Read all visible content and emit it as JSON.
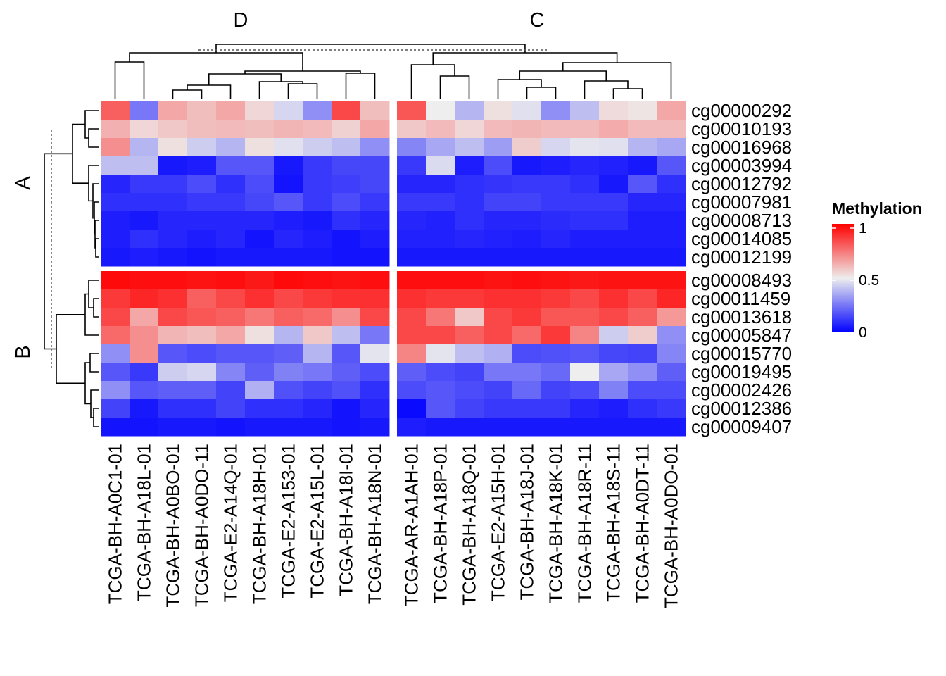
{
  "chart_data": {
    "type": "heatmap",
    "title": "",
    "row_groups": [
      {
        "name": "A",
        "rows": [
          "cg00000292",
          "cg00010193",
          "cg00016968",
          "cg00003994",
          "cg00012792",
          "cg00007981",
          "cg00008713",
          "cg00014085",
          "cg00012199"
        ]
      },
      {
        "name": "B",
        "rows": [
          "cg00008493",
          "cg00011459",
          "cg00013618",
          "cg00005847",
          "cg00015770",
          "cg00019495",
          "cg00002426",
          "cg00012386",
          "cg00009407"
        ]
      }
    ],
    "column_groups": [
      {
        "name": "D",
        "columns": [
          "TCGA-BH-A0C1-01",
          "TCGA-BH-A18L-01",
          "TCGA-BH-A0BO-01",
          "TCGA-BH-A0DO-11",
          "TCGA-E2-A14Q-01",
          "TCGA-BH-A18H-01",
          "TCGA-E2-A153-01",
          "TCGA-E2-A15L-01",
          "TCGA-BH-A18I-01",
          "TCGA-BH-A18N-01"
        ]
      },
      {
        "name": "C",
        "columns": [
          "TCGA-AR-A1AH-01",
          "TCGA-BH-A18P-01",
          "TCGA-BH-A18Q-01",
          "TCGA-E2-A15H-01",
          "TCGA-BH-A18J-01",
          "TCGA-BH-A18K-01",
          "TCGA-BH-A18R-11",
          "TCGA-BH-A18S-11",
          "TCGA-BH-A0DT-11",
          "TCGA-BH-A0DO-01"
        ]
      }
    ],
    "values": [
      [
        0.8,
        0.25,
        0.65,
        0.6,
        0.65,
        0.55,
        0.45,
        0.3,
        0.85,
        0.6,
        0.82,
        0.5,
        0.38,
        0.53,
        0.47,
        0.3,
        0.4,
        0.54,
        0.52,
        0.65
      ],
      [
        0.63,
        0.55,
        0.58,
        0.6,
        0.61,
        0.6,
        0.62,
        0.61,
        0.56,
        0.65,
        0.58,
        0.61,
        0.55,
        0.61,
        0.62,
        0.61,
        0.61,
        0.64,
        0.61,
        0.61
      ],
      [
        0.7,
        0.38,
        0.53,
        0.43,
        0.38,
        0.53,
        0.47,
        0.43,
        0.4,
        0.3,
        0.28,
        0.35,
        0.4,
        0.33,
        0.57,
        0.45,
        0.48,
        0.47,
        0.38,
        0.35
      ],
      [
        0.4,
        0.4,
        0.05,
        0.06,
        0.18,
        0.18,
        0.05,
        0.12,
        0.15,
        0.15,
        0.12,
        0.46,
        0.06,
        0.16,
        0.05,
        0.06,
        0.08,
        0.07,
        0.05,
        0.18
      ],
      [
        0.08,
        0.12,
        0.12,
        0.16,
        0.1,
        0.16,
        0.04,
        0.12,
        0.13,
        0.15,
        0.08,
        0.08,
        0.1,
        0.11,
        0.12,
        0.12,
        0.1,
        0.05,
        0.18,
        0.1
      ],
      [
        0.1,
        0.1,
        0.1,
        0.12,
        0.12,
        0.15,
        0.18,
        0.12,
        0.16,
        0.12,
        0.12,
        0.12,
        0.1,
        0.14,
        0.14,
        0.12,
        0.12,
        0.12,
        0.08,
        0.08
      ],
      [
        0.06,
        0.05,
        0.08,
        0.08,
        0.08,
        0.08,
        0.06,
        0.05,
        0.1,
        0.08,
        0.08,
        0.07,
        0.1,
        0.08,
        0.08,
        0.09,
        0.1,
        0.1,
        0.06,
        0.06
      ],
      [
        0.06,
        0.1,
        0.08,
        0.06,
        0.08,
        0.04,
        0.08,
        0.06,
        0.04,
        0.06,
        0.07,
        0.07,
        0.08,
        0.07,
        0.06,
        0.08,
        0.06,
        0.06,
        0.06,
        0.06
      ],
      [
        0.05,
        0.06,
        0.05,
        0.04,
        0.05,
        0.05,
        0.05,
        0.05,
        0.04,
        0.04,
        0.05,
        0.05,
        0.05,
        0.05,
        0.05,
        0.05,
        0.05,
        0.05,
        0.05,
        0.05
      ],
      [
        0.98,
        0.97,
        0.97,
        0.96,
        0.97,
        0.95,
        0.98,
        0.97,
        0.96,
        0.97,
        0.97,
        0.97,
        0.97,
        0.96,
        0.97,
        0.96,
        0.95,
        0.96,
        0.96,
        0.96
      ],
      [
        0.88,
        0.92,
        0.9,
        0.8,
        0.85,
        0.9,
        0.85,
        0.88,
        0.9,
        0.9,
        0.9,
        0.88,
        0.88,
        0.9,
        0.9,
        0.88,
        0.85,
        0.9,
        0.85,
        0.92
      ],
      [
        0.85,
        0.65,
        0.85,
        0.82,
        0.8,
        0.75,
        0.8,
        0.78,
        0.7,
        0.85,
        0.85,
        0.75,
        0.58,
        0.85,
        0.88,
        0.82,
        0.82,
        0.85,
        0.8,
        0.68
      ],
      [
        0.78,
        0.7,
        0.62,
        0.6,
        0.65,
        0.53,
        0.38,
        0.58,
        0.4,
        0.25,
        0.85,
        0.85,
        0.8,
        0.85,
        0.78,
        0.88,
        0.72,
        0.43,
        0.57,
        0.3
      ],
      [
        0.3,
        0.7,
        0.18,
        0.16,
        0.18,
        0.18,
        0.2,
        0.38,
        0.18,
        0.48,
        0.72,
        0.48,
        0.4,
        0.37,
        0.16,
        0.17,
        0.18,
        0.15,
        0.14,
        0.28
      ],
      [
        0.18,
        0.12,
        0.43,
        0.45,
        0.28,
        0.2,
        0.27,
        0.25,
        0.2,
        0.16,
        0.2,
        0.16,
        0.14,
        0.25,
        0.25,
        0.22,
        0.5,
        0.35,
        0.3,
        0.2
      ],
      [
        0.3,
        0.18,
        0.2,
        0.2,
        0.14,
        0.37,
        0.17,
        0.14,
        0.17,
        0.1,
        0.16,
        0.18,
        0.16,
        0.14,
        0.22,
        0.14,
        0.16,
        0.27,
        0.16,
        0.16
      ],
      [
        0.14,
        0.05,
        0.1,
        0.1,
        0.14,
        0.1,
        0.1,
        0.08,
        0.04,
        0.08,
        0.02,
        0.18,
        0.14,
        0.12,
        0.12,
        0.12,
        0.08,
        0.06,
        0.1,
        0.12
      ],
      [
        0.04,
        0.04,
        0.05,
        0.05,
        0.04,
        0.05,
        0.05,
        0.05,
        0.04,
        0.05,
        0.06,
        0.05,
        0.05,
        0.05,
        0.05,
        0.05,
        0.05,
        0.05,
        0.05,
        0.05
      ]
    ],
    "color_scale": {
      "low": "#0000ff",
      "mid": "#eeeeee",
      "high": "#ff0000",
      "domain": [
        0,
        0.5,
        1
      ]
    },
    "legend": {
      "title": "Methylation",
      "ticks": [
        "1",
        "0.5",
        "0"
      ],
      "placement": "right"
    },
    "grid": false
  }
}
